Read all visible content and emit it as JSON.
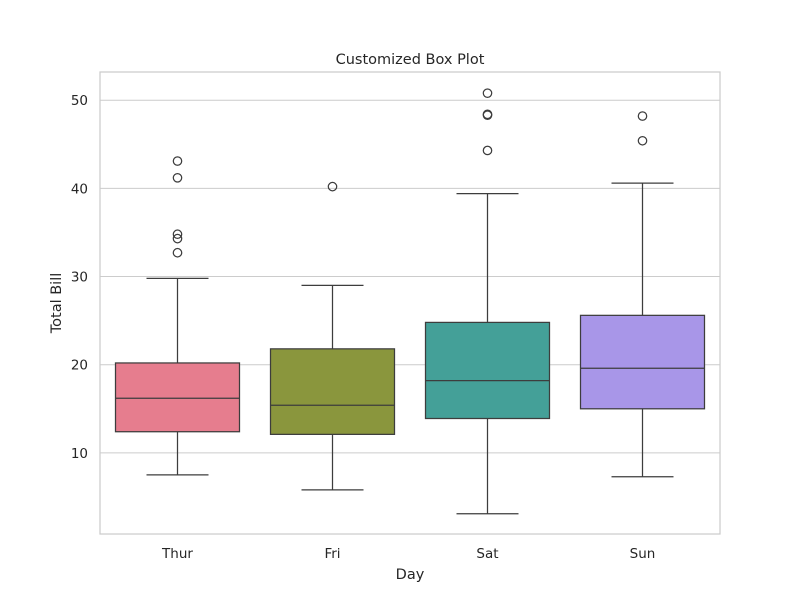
{
  "chart_data": {
    "type": "box",
    "title": "Customized Box Plot",
    "xlabel": "Day",
    "ylabel": "Total Bill",
    "categories": [
      "Thur",
      "Fri",
      "Sat",
      "Sun"
    ],
    "ylim": [
      0.8,
      53.2
    ],
    "yticks": [
      10,
      20,
      30,
      40,
      50
    ],
    "grid": "horizontal",
    "colors": [
      "#e67d8e",
      "#8a963d",
      "#44a098",
      "#a896e8"
    ],
    "boxes": [
      {
        "category": "Thur",
        "whisker_low": 7.5,
        "q1": 12.4,
        "median": 16.2,
        "q3": 20.2,
        "whisker_high": 29.8,
        "outliers": [
          32.7,
          34.3,
          34.8,
          41.2,
          43.1
        ]
      },
      {
        "category": "Fri",
        "whisker_low": 5.8,
        "q1": 12.1,
        "median": 15.4,
        "q3": 21.8,
        "whisker_high": 29.0,
        "outliers": [
          40.2
        ]
      },
      {
        "category": "Sat",
        "whisker_low": 3.1,
        "q1": 13.9,
        "median": 18.2,
        "q3": 24.8,
        "whisker_high": 39.4,
        "outliers": [
          44.3,
          48.3,
          48.4,
          50.8
        ]
      },
      {
        "category": "Sun",
        "whisker_low": 7.3,
        "q1": 15.0,
        "median": 19.6,
        "q3": 25.6,
        "whisker_high": 40.6,
        "outliers": [
          45.4,
          48.2
        ]
      }
    ]
  }
}
